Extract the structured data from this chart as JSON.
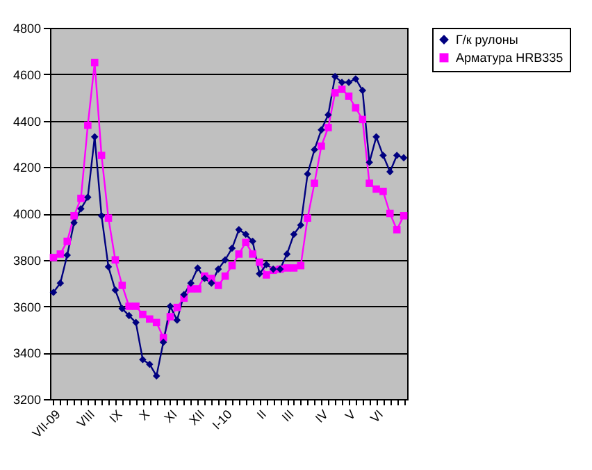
{
  "chart_data": {
    "type": "line",
    "categories": [
      "VII-09",
      null,
      null,
      null,
      null,
      "VIII",
      null,
      null,
      null,
      "IX",
      null,
      null,
      null,
      "X",
      null,
      null,
      null,
      "XI",
      null,
      null,
      null,
      "XII",
      null,
      null,
      null,
      "I-10",
      null,
      null,
      null,
      null,
      "II",
      null,
      null,
      null,
      "III",
      null,
      null,
      null,
      null,
      "IV",
      null,
      null,
      null,
      "V",
      null,
      null,
      null,
      "VI",
      null,
      null,
      null,
      null
    ],
    "series": [
      {
        "name": "Г/к рулоны",
        "color": "#000080",
        "marker": "diamond",
        "values": [
          3660,
          3700,
          3820,
          3960,
          4020,
          4070,
          4330,
          3990,
          3770,
          3670,
          3590,
          3560,
          3530,
          3370,
          3350,
          3300,
          3445,
          3600,
          3540,
          3650,
          3700,
          3765,
          3720,
          3700,
          3760,
          3800,
          3850,
          3930,
          3910,
          3880,
          3740,
          3780,
          3760,
          3760,
          3825,
          3910,
          3950,
          4170,
          4275,
          4360,
          4425,
          4590,
          4565,
          4565,
          4580,
          4530,
          4220,
          4330,
          4250,
          4180,
          4250,
          4240
        ]
      },
      {
        "name": "Арматура HRB335",
        "color": "#ff00ff",
        "marker": "square",
        "values": [
          3810,
          3825,
          3880,
          3990,
          4065,
          4380,
          4650,
          4250,
          3980,
          3800,
          3690,
          3600,
          3600,
          3565,
          3545,
          3530,
          3465,
          3555,
          3595,
          3635,
          3675,
          3675,
          3730,
          3720,
          3690,
          3730,
          3775,
          3825,
          3875,
          3825,
          3790,
          3735,
          3755,
          3760,
          3765,
          3765,
          3775,
          3980,
          4130,
          4290,
          4370,
          4520,
          4535,
          4505,
          4455,
          4405,
          4130,
          4105,
          4095,
          4000,
          3930,
          3990
        ]
      }
    ],
    "ylim": [
      3200,
      4800
    ],
    "yticks": [
      3200,
      3400,
      3600,
      3800,
      4000,
      4200,
      4400,
      4600,
      4800
    ],
    "grid": "y",
    "legend": "right",
    "line_style": "solid"
  }
}
